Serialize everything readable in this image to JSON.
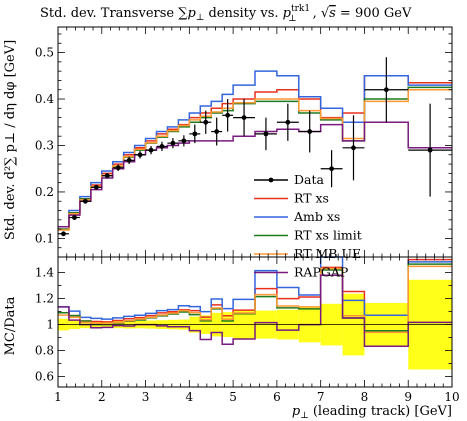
{
  "chart_data": {
    "type": "line",
    "title": "Std. dev. Transverse ∑p⊥ density vs. p⊥trk1, √s = 900 GeV",
    "title_parts": {
      "pre": "Std. dev. Transverse ∑",
      "p": "p",
      "perp_sub": "⊥",
      "mid": " density vs. ",
      "p2": "p",
      "sup": "trk1",
      "sub": "⊥",
      "comma": ", ",
      "sqrt": "√",
      "s": "s",
      "eq": " = 900 GeV"
    },
    "xlabel": "p⊥ (leading track) [GeV]",
    "xlabel_parts": {
      "p": "p",
      "sub": "⊥",
      "rest": " (leading track) [GeV]"
    },
    "ylabel_main": "Std. dev. d²∑ p⊥ / dη dφ [GeV]",
    "ylabel_ratio": "MC/Data",
    "xlim": [
      1,
      10
    ],
    "ylim_main": [
      0.06,
      0.555
    ],
    "ylim_ratio": [
      0.52,
      1.52
    ],
    "xticks": [
      1,
      2,
      3,
      4,
      5,
      6,
      7,
      8,
      9,
      10
    ],
    "yticks_main": [
      0.1,
      0.2,
      0.3,
      0.4,
      0.5
    ],
    "yticks_ratio": [
      0.6,
      0.8,
      1,
      1.2,
      1.4
    ],
    "ytick_labels_main": [
      "0.1",
      "0.2",
      "0.3",
      "0.4",
      "0.5"
    ],
    "ytick_labels_ratio": [
      "0.6",
      "0.8",
      "1",
      "1.2",
      "1.4"
    ],
    "bin_edges": [
      1,
      1.25,
      1.5,
      1.75,
      2,
      2.25,
      2.5,
      2.75,
      3,
      3.25,
      3.5,
      3.75,
      4,
      4.25,
      4.5,
      4.75,
      5,
      5.5,
      6,
      6.5,
      7,
      7.5,
      8,
      9,
      10
    ],
    "data": {
      "name": "Data",
      "y": [
        0.11,
        0.145,
        0.18,
        0.21,
        0.235,
        0.252,
        0.268,
        0.28,
        0.29,
        0.298,
        0.305,
        0.31,
        0.325,
        0.35,
        0.33,
        0.365,
        0.36,
        0.325,
        0.35,
        0.33,
        0.25,
        0.295,
        0.42,
        0.29
      ],
      "err": [
        0.005,
        0.005,
        0.005,
        0.005,
        0.006,
        0.007,
        0.008,
        0.008,
        0.009,
        0.01,
        0.011,
        0.012,
        0.02,
        0.025,
        0.03,
        0.035,
        0.04,
        0.035,
        0.04,
        0.045,
        0.04,
        0.07,
        0.07,
        0.1
      ]
    },
    "series": [
      {
        "name": "RT xs",
        "color": "#e8301e",
        "values": [
          0.12,
          0.155,
          0.185,
          0.215,
          0.24,
          0.26,
          0.28,
          0.295,
          0.31,
          0.325,
          0.335,
          0.345,
          0.36,
          0.37,
          0.38,
          0.39,
          0.4,
          0.415,
          0.42,
          0.4,
          0.36,
          0.37,
          0.45,
          0.435
        ]
      },
      {
        "name": "Amb xs",
        "color": "#3366dd",
        "values": [
          0.125,
          0.16,
          0.19,
          0.22,
          0.245,
          0.265,
          0.285,
          0.3,
          0.315,
          0.33,
          0.34,
          0.355,
          0.37,
          0.385,
          0.395,
          0.41,
          0.43,
          0.46,
          0.45,
          0.405,
          0.38,
          0.35,
          0.45,
          0.43
        ]
      },
      {
        "name": "RT xs limit",
        "color": "#1f7a1f",
        "values": [
          0.12,
          0.155,
          0.185,
          0.21,
          0.235,
          0.255,
          0.275,
          0.29,
          0.305,
          0.318,
          0.33,
          0.34,
          0.35,
          0.36,
          0.37,
          0.375,
          0.39,
          0.395,
          0.395,
          0.37,
          0.355,
          0.31,
          0.4,
          0.425
        ]
      },
      {
        "name": "RT MB UE",
        "color": "#ff9933",
        "values": [
          0.118,
          0.153,
          0.183,
          0.212,
          0.236,
          0.256,
          0.276,
          0.292,
          0.306,
          0.32,
          0.332,
          0.343,
          0.355,
          0.363,
          0.372,
          0.38,
          0.392,
          0.4,
          0.4,
          0.375,
          0.358,
          0.315,
          0.395,
          0.42
        ]
      },
      {
        "name": "RAPGAP",
        "color": "#7a1a80",
        "values": [
          0.125,
          0.15,
          0.18,
          0.205,
          0.23,
          0.25,
          0.265,
          0.28,
          0.29,
          0.295,
          0.3,
          0.305,
          0.31,
          0.31,
          0.31,
          0.31,
          0.32,
          0.33,
          0.335,
          0.33,
          0.345,
          0.31,
          0.35,
          0.295
        ]
      }
    ],
    "legend_placement": "right, lower half of main panel"
  }
}
